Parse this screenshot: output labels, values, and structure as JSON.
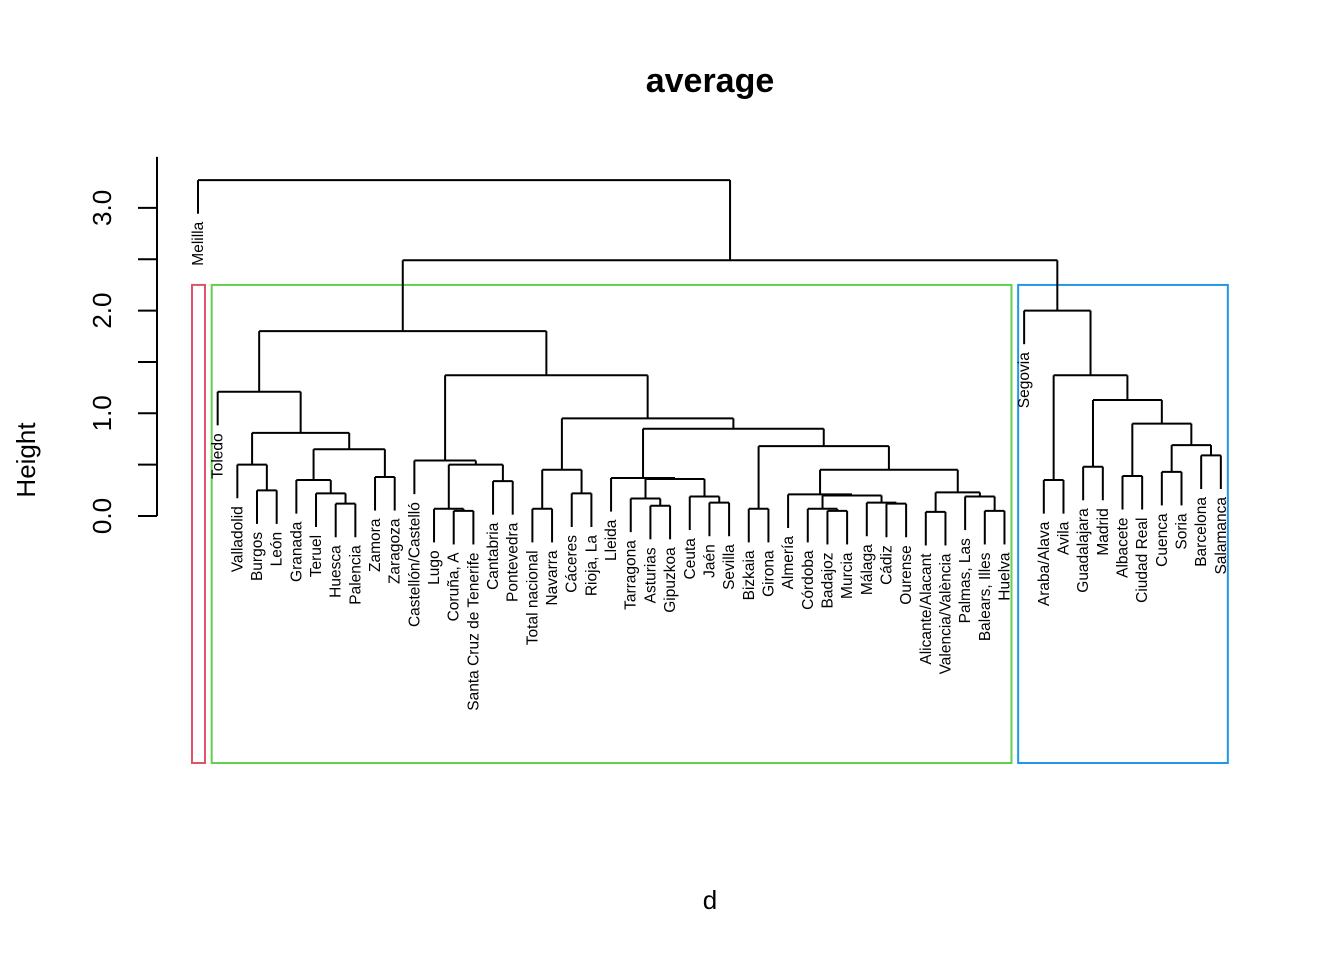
{
  "chart_data": {
    "type": "dendrogram",
    "title": "average",
    "xlabel": "d",
    "ylabel": "Height",
    "ylim": [
      0,
      3.5
    ],
    "yticks": [
      0.0,
      0.5,
      1.0,
      1.5,
      2.0,
      2.5,
      3.0
    ],
    "ytick_labels": [
      "0.0",
      "1.0",
      "2.0",
      "3.0"
    ],
    "ytick_label_values": [
      0.0,
      1.0,
      2.0,
      3.0
    ],
    "hang": 0.327,
    "leaves": [
      "Melilla",
      "Toledo",
      "Valladolid",
      "Burgos",
      "León",
      "Granada",
      "Teruel",
      "Huesca",
      "Palencia",
      "Zamora",
      "Zaragoza",
      "Castellón/Castelló",
      "Lugo",
      "Coruña, A",
      "Santa Cruz de Tenerife",
      "Cantabria",
      "Pontevedra",
      "Total nacional",
      "Navarra",
      "Cáceres",
      "Rioja, La",
      "Lleida",
      "Tarragona",
      "Asturias",
      "Gipuzkoa",
      "Ceuta",
      "Jaén",
      "Sevilla",
      "Bizkaia",
      "Girona",
      "Almería",
      "Córdoba",
      "Badajoz",
      "Murcia",
      "Málaga",
      "Cádiz",
      "Ourense",
      "Alicante/Alacant",
      "Valencia/València",
      "Palmas, Las",
      "Balears, Illes",
      "Huelva",
      "Segovia",
      "Araba/Alava",
      "Avila",
      "Guadalajara",
      "Madrid",
      "Albacete",
      "Ciudad Real",
      "Cuenca",
      "Soria",
      "Barcelona",
      "Salamanca"
    ],
    "tree": {
      "h": 3.27,
      "c": [
        "Melilla",
        {
          "h": 2.49,
          "c": [
            {
              "h": 1.8,
              "c": [
                {
                  "h": 1.21,
                  "c": [
                    "Toledo",
                    {
                      "h": 0.81,
                      "c": [
                        {
                          "h": 0.5,
                          "c": [
                            "Valladolid",
                            {
                              "h": 0.25,
                              "c": [
                                "Burgos",
                                "León"
                              ]
                            }
                          ]
                        },
                        {
                          "h": 0.65,
                          "c": [
                            {
                              "h": 0.35,
                              "c": [
                                "Granada",
                                {
                                  "h": 0.22,
                                  "c": [
                                    "Teruel",
                                    {
                                      "h": 0.12,
                                      "c": [
                                        "Huesca",
                                        "Palencia"
                                      ]
                                    }
                                  ]
                                }
                              ]
                            },
                            {
                              "h": 0.38,
                              "c": [
                                "Zamora",
                                "Zaragoza"
                              ]
                            }
                          ]
                        }
                      ]
                    }
                  ]
                },
                {
                  "h": 1.37,
                  "c": [
                    {
                      "h": 0.54,
                      "c": [
                        "Castellón/Castelló",
                        {
                          "h": 0.5,
                          "c": [
                            {
                              "h": 0.07,
                              "c": [
                                "Lugo",
                                {
                                  "h": 0.05,
                                  "c": [
                                    "Coruña, A",
                                    "Santa Cruz de Tenerife"
                                  ]
                                }
                              ]
                            },
                            {
                              "h": 0.34,
                              "c": [
                                "Cantabria",
                                "Pontevedra"
                              ]
                            }
                          ]
                        }
                      ]
                    },
                    {
                      "h": 0.95,
                      "c": [
                        {
                          "h": 0.45,
                          "c": [
                            {
                              "h": 0.07,
                              "c": [
                                "Total nacional",
                                "Navarra"
                              ]
                            },
                            {
                              "h": 0.22,
                              "c": [
                                "Cáceres",
                                "Rioja, La"
                              ]
                            }
                          ]
                        },
                        {
                          "h": 0.85,
                          "c": [
                            {
                              "h": 0.37,
                              "c": [
                                "Lleida",
                                {
                                  "h": 0.36,
                                  "c": [
                                    {
                                      "h": 0.17,
                                      "c": [
                                        "Tarragona",
                                        {
                                          "h": 0.1,
                                          "c": [
                                            "Asturias",
                                            "Gipuzkoa"
                                          ]
                                        }
                                      ]
                                    },
                                    {
                                      "h": 0.19,
                                      "c": [
                                        "Ceuta",
                                        {
                                          "h": 0.13,
                                          "c": [
                                            "Jaén",
                                            "Sevilla"
                                          ]
                                        }
                                      ]
                                    }
                                  ]
                                }
                              ]
                            },
                            {
                              "h": 0.68,
                              "c": [
                                {
                                  "h": 0.07,
                                  "c": [
                                    "Bizkaia",
                                    "Girona"
                                  ]
                                },
                                {
                                  "h": 0.45,
                                  "c": [
                                    {
                                      "h": 0.21,
                                      "c": [
                                        "Almería",
                                        {
                                          "h": 0.2,
                                          "c": [
                                            {
                                              "h": 0.07,
                                              "c": [
                                                "Córdoba",
                                                {
                                                  "h": 0.05,
                                                  "c": [
                                                    "Badajoz",
                                                    "Murcia"
                                                  ]
                                                }
                                              ]
                                            },
                                            {
                                              "h": 0.13,
                                              "c": [
                                                "Málaga",
                                                {
                                                  "h": 0.12,
                                                  "c": [
                                                    "Cádiz",
                                                    "Ourense"
                                                  ]
                                                }
                                              ]
                                            }
                                          ]
                                        }
                                      ]
                                    },
                                    {
                                      "h": 0.23,
                                      "c": [
                                        {
                                          "h": 0.04,
                                          "c": [
                                            "Alicante/Alacant",
                                            "Valencia/València"
                                          ]
                                        },
                                        {
                                          "h": 0.19,
                                          "c": [
                                            "Palmas, Las",
                                            {
                                              "h": 0.05,
                                              "c": [
                                                "Balears, Illes",
                                                "Huelva"
                                              ]
                                            }
                                          ]
                                        }
                                      ]
                                    }
                                  ]
                                }
                              ]
                            }
                          ]
                        }
                      ]
                    }
                  ]
                }
              ]
            },
            {
              "h": 2.0,
              "c": [
                "Segovia",
                {
                  "h": 1.37,
                  "c": [
                    {
                      "h": 0.35,
                      "c": [
                        "Araba/Alava",
                        "Avila"
                      ]
                    },
                    {
                      "h": 1.13,
                      "c": [
                        {
                          "h": 0.48,
                          "c": [
                            "Guadalajara",
                            "Madrid"
                          ]
                        },
                        {
                          "h": 0.9,
                          "c": [
                            {
                              "h": 0.39,
                              "c": [
                                "Albacete",
                                "Ciudad Real"
                              ]
                            },
                            {
                              "h": 0.69,
                              "c": [
                                {
                                  "h": 0.43,
                                  "c": [
                                    "Cuenca",
                                    "Soria"
                                  ]
                                },
                                {
                                  "h": 0.59,
                                  "c": [
                                    "Barcelona",
                                    "Salamanca"
                                  ]
                                }
                              ]
                            }
                          ]
                        }
                      ]
                    }
                  ]
                }
              ]
            }
          ]
        }
      ]
    },
    "cluster_boxes": [
      {
        "name": "cluster-1",
        "color": "#DF536B",
        "members": [
          "Melilla"
        ]
      },
      {
        "name": "cluster-2",
        "color": "#61D04F",
        "members_from": "Toledo",
        "members_to": "Huelva"
      },
      {
        "name": "cluster-3",
        "color": "#2297E6",
        "members_from": "Segovia",
        "members_to": "Salamanca"
      }
    ],
    "cluster_box_height": 2.25
  }
}
